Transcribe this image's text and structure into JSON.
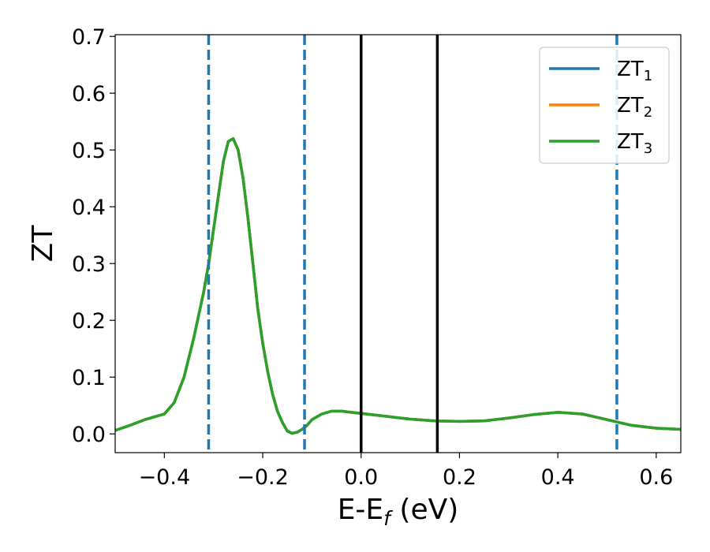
{
  "chart_data": {
    "type": "line",
    "title": "",
    "xlabel": "E-E",
    "xlabel_sub": "f",
    "xlabel_unit": " (eV)",
    "ylabel": "ZT",
    "xlim": [
      -0.5,
      0.65
    ],
    "ylim": [
      -0.033,
      0.703
    ],
    "xticks": [
      -0.4,
      -0.2,
      0.0,
      0.2,
      0.4,
      0.6
    ],
    "xtick_labels": [
      "−0.4",
      "−0.2",
      "0.0",
      "0.2",
      "0.4",
      "0.6"
    ],
    "yticks": [
      0.0,
      0.1,
      0.2,
      0.3,
      0.4,
      0.5,
      0.6,
      0.7
    ],
    "ytick_labels": [
      "0.0",
      "0.1",
      "0.2",
      "0.3",
      "0.4",
      "0.5",
      "0.6",
      "0.7"
    ],
    "grid": false,
    "legend_position": "top-right",
    "x": [
      -0.5,
      -0.47,
      -0.44,
      -0.42,
      -0.4,
      -0.38,
      -0.36,
      -0.34,
      -0.32,
      -0.31,
      -0.3,
      -0.29,
      -0.28,
      -0.27,
      -0.26,
      -0.25,
      -0.24,
      -0.23,
      -0.22,
      -0.21,
      -0.2,
      -0.19,
      -0.18,
      -0.17,
      -0.16,
      -0.15,
      -0.14,
      -0.13,
      -0.12,
      -0.11,
      -0.1,
      -0.08,
      -0.06,
      -0.04,
      -0.02,
      0.0,
      0.05,
      0.1,
      0.15,
      0.2,
      0.25,
      0.3,
      0.35,
      0.4,
      0.45,
      0.5,
      0.55,
      0.6,
      0.65
    ],
    "series": [
      {
        "name": "ZT",
        "name_sub": "1",
        "color": "#1f77b4",
        "y": [
          0.006,
          0.015,
          0.025,
          0.03,
          0.035,
          0.055,
          0.1,
          0.17,
          0.25,
          0.3,
          0.36,
          0.42,
          0.48,
          0.515,
          0.52,
          0.5,
          0.45,
          0.38,
          0.3,
          0.22,
          0.16,
          0.11,
          0.07,
          0.04,
          0.02,
          0.005,
          0.001,
          0.003,
          0.008,
          0.015,
          0.025,
          0.035,
          0.04,
          0.04,
          0.038,
          0.036,
          0.031,
          0.026,
          0.023,
          0.022,
          0.023,
          0.028,
          0.034,
          0.038,
          0.035,
          0.025,
          0.015,
          0.01,
          0.008
        ]
      },
      {
        "name": "ZT",
        "name_sub": "2",
        "color": "#ff7f0e",
        "y": [
          0.006,
          0.015,
          0.025,
          0.03,
          0.035,
          0.055,
          0.1,
          0.17,
          0.25,
          0.3,
          0.36,
          0.42,
          0.48,
          0.515,
          0.52,
          0.5,
          0.45,
          0.38,
          0.3,
          0.22,
          0.16,
          0.11,
          0.07,
          0.04,
          0.02,
          0.005,
          0.001,
          0.003,
          0.008,
          0.015,
          0.025,
          0.035,
          0.04,
          0.04,
          0.038,
          0.036,
          0.031,
          0.026,
          0.023,
          0.022,
          0.023,
          0.028,
          0.034,
          0.038,
          0.035,
          0.025,
          0.015,
          0.01,
          0.008
        ]
      },
      {
        "name": "ZT",
        "name_sub": "3",
        "color": "#2ca02c",
        "y": [
          0.006,
          0.015,
          0.025,
          0.03,
          0.035,
          0.055,
          0.1,
          0.17,
          0.25,
          0.3,
          0.36,
          0.42,
          0.48,
          0.515,
          0.52,
          0.5,
          0.45,
          0.38,
          0.3,
          0.22,
          0.16,
          0.11,
          0.07,
          0.04,
          0.02,
          0.005,
          0.001,
          0.003,
          0.008,
          0.015,
          0.025,
          0.035,
          0.04,
          0.04,
          0.038,
          0.036,
          0.031,
          0.026,
          0.023,
          0.022,
          0.023,
          0.028,
          0.034,
          0.038,
          0.035,
          0.025,
          0.015,
          0.01,
          0.008
        ]
      }
    ],
    "vertical_lines": [
      {
        "x": -0.31,
        "style": "dashed",
        "color": "#1f77b4"
      },
      {
        "x": -0.115,
        "style": "dashed",
        "color": "#1f77b4"
      },
      {
        "x": 0.0,
        "style": "solid",
        "color": "#000000"
      },
      {
        "x": 0.155,
        "style": "solid",
        "color": "#000000"
      },
      {
        "x": 0.52,
        "style": "dashed",
        "color": "#1f77b4"
      }
    ]
  }
}
